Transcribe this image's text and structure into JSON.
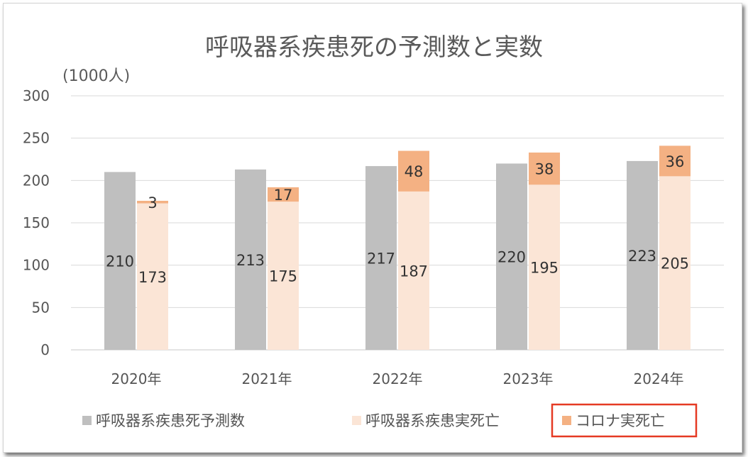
{
  "chart_data": {
    "type": "bar",
    "title": "呼吸器系疾患死の予測数と実数",
    "ylabel": "(1000人)",
    "ylim": [
      0,
      300
    ],
    "yticks": [
      0,
      50,
      100,
      150,
      200,
      250,
      300
    ],
    "grid": true,
    "legend_position": "bottom",
    "categories": [
      "2020年",
      "2021年",
      "2022年",
      "2023年",
      "2024年"
    ],
    "series": [
      {
        "name": "呼吸器系疾患死予測数",
        "values": [
          210,
          213,
          217,
          220,
          223
        ],
        "color": "#bfbfbf",
        "stack": "predicted"
      },
      {
        "name": "呼吸器系疾患実死亡",
        "values": [
          173,
          175,
          187,
          195,
          205
        ],
        "color": "#fbe5d6",
        "stack": "actual"
      },
      {
        "name": "コロナ実死亡",
        "values": [
          3,
          17,
          48,
          38,
          36
        ],
        "color": "#f4b183",
        "stack": "actual"
      }
    ],
    "highlighted_legend": "コロナ実死亡",
    "highlight_color": "#e53a24"
  }
}
